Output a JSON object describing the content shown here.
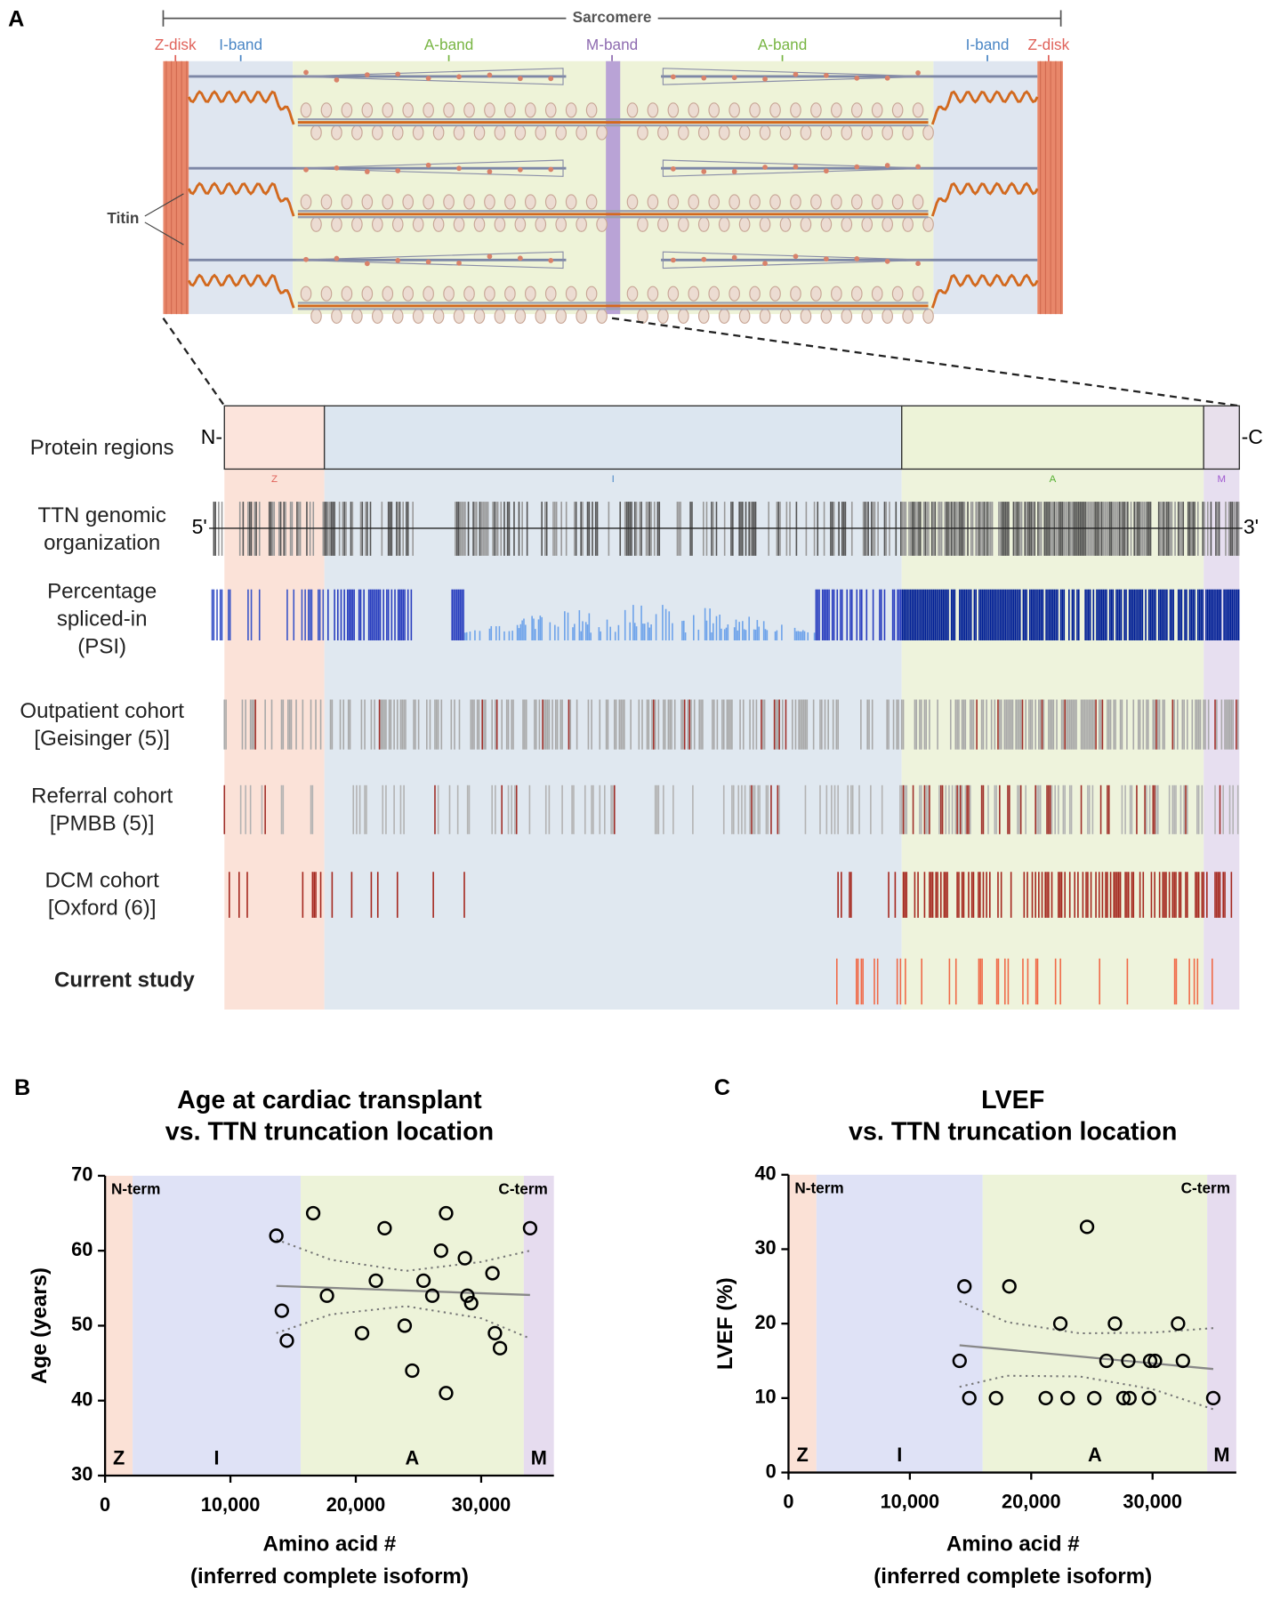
{
  "panel_a": {
    "letter": "A",
    "sarcomere": "Sarcomere",
    "band_labels": [
      "Z-disk",
      "I-band",
      "A-band",
      "M-band",
      "A-band",
      "I-band",
      "Z-disk"
    ],
    "titin": "Titin",
    "ends": [
      "N-",
      "-C"
    ],
    "regions": [
      "Z",
      "I",
      "A",
      "M"
    ],
    "gene_ends": [
      "5'",
      "3'"
    ],
    "tracks": [
      [
        "Protein regions"
      ],
      [
        "TTN genomic",
        "organization"
      ],
      [
        "Percentage",
        "spliced-in",
        "(PSI)"
      ],
      [
        "Outpatient cohort",
        "[Geisinger (5)]"
      ],
      [
        "Referral cohort",
        "[PMBB (5)]"
      ],
      [
        "DCM cohort",
        "[Oxford (6)]"
      ],
      [
        "Current study"
      ]
    ]
  },
  "chart_data": [
    {
      "type": "scatter",
      "letter": "B",
      "title": [
        "Age at cardiac transplant",
        "vs. TTN truncation location"
      ],
      "y_label": "Age (years)",
      "x_label": [
        "Amino acid #",
        "(inferred complete isoform)"
      ],
      "xlim": [
        0,
        35800
      ],
      "ylim": [
        30,
        70
      ],
      "xticks": [
        0,
        {
          "value": 10000,
          "label": "10,000"
        },
        {
          "value": 20000,
          "label": "20,000"
        },
        {
          "value": 30000,
          "label": "30,000"
        }
      ],
      "yticks": [
        30,
        40,
        50,
        60,
        70
      ],
      "corner_labels": [
        "N-term",
        "C-term"
      ],
      "regions": [
        {
          "label": "Z",
          "start": 0,
          "end": 2200,
          "color": "#fbe1d6"
        },
        {
          "label": "I",
          "start": 2200,
          "end": 15600,
          "color": "#dfe2f6"
        },
        {
          "label": "A",
          "start": 15600,
          "end": 33400,
          "color": "#edf3d9"
        },
        {
          "label": "M",
          "start": 33400,
          "end": 35800,
          "color": "#e6dcef"
        }
      ],
      "points": {
        "x": [
          13660,
          14100,
          14500,
          16600,
          17700,
          20500,
          21600,
          22300,
          23900,
          24500,
          25400,
          26100,
          26800,
          27200,
          27200,
          28700,
          28900,
          29200,
          30900,
          31100,
          31500,
          33900
        ],
        "y": [
          62,
          52,
          48,
          65,
          54,
          49,
          56,
          63,
          50,
          44,
          56,
          54,
          60,
          65,
          41,
          59,
          54,
          53,
          57,
          49,
          47,
          63
        ]
      },
      "fit": {
        "x": [
          13660,
          33900
        ],
        "y": [
          55.3,
          54.1
        ],
        "color": "#888888"
      },
      "ci_upper": {
        "x": [
          13660,
          18000,
          24000,
          30000,
          33900
        ],
        "y": [
          61.5,
          58.8,
          57.3,
          58.5,
          60.0
        ]
      },
      "ci_lower": {
        "x": [
          13660,
          18000,
          24000,
          30000,
          33900
        ],
        "y": [
          49.0,
          51.5,
          52.6,
          51.0,
          48.3
        ]
      }
    },
    {
      "type": "scatter",
      "letter": "C",
      "title": [
        "LVEF",
        "vs. TTN truncation location"
      ],
      "y_label": "LVEF (%)",
      "x_label": [
        "Amino acid #",
        "(inferred complete isoform)"
      ],
      "xlim": [
        0,
        36900
      ],
      "ylim": [
        0,
        40
      ],
      "xticks": [
        0,
        {
          "value": 10000,
          "label": "10,000"
        },
        {
          "value": 20000,
          "label": "20,000"
        },
        {
          "value": 30000,
          "label": "30,000"
        }
      ],
      "yticks": [
        0,
        10,
        20,
        30,
        40
      ],
      "corner_labels": [
        "N-term",
        "C-term"
      ],
      "regions": [
        {
          "label": "Z",
          "start": 0,
          "end": 2300,
          "color": "#fbe1d6"
        },
        {
          "label": "I",
          "start": 2300,
          "end": 16000,
          "color": "#dfe2f6"
        },
        {
          "label": "A",
          "start": 16000,
          "end": 34500,
          "color": "#edf3d9"
        },
        {
          "label": "M",
          "start": 34500,
          "end": 36900,
          "color": "#e6dcef"
        }
      ],
      "points": {
        "x": [
          14100,
          14500,
          14900,
          17100,
          18200,
          21200,
          22400,
          23000,
          24600,
          25200,
          26200,
          26900,
          27600,
          28000,
          28100,
          29700,
          29800,
          30200,
          32100,
          32500,
          35000
        ],
        "y": [
          15,
          25,
          10,
          10,
          25,
          10,
          20,
          10,
          33,
          10,
          15,
          20,
          10,
          15,
          10,
          10,
          15,
          15,
          20,
          15,
          10
        ]
      },
      "fit": {
        "x": [
          14100,
          35000
        ],
        "y": [
          17.1,
          13.9
        ],
        "color": "#888888"
      },
      "ci_upper": {
        "x": [
          14100,
          18000,
          24000,
          30000,
          35000
        ],
        "y": [
          23.0,
          20.2,
          18.7,
          18.8,
          19.4
        ]
      },
      "ci_lower": {
        "x": [
          14100,
          18000,
          24000,
          30000,
          35000
        ],
        "y": [
          11.5,
          13.0,
          12.9,
          11.2,
          8.5
        ]
      }
    }
  ]
}
